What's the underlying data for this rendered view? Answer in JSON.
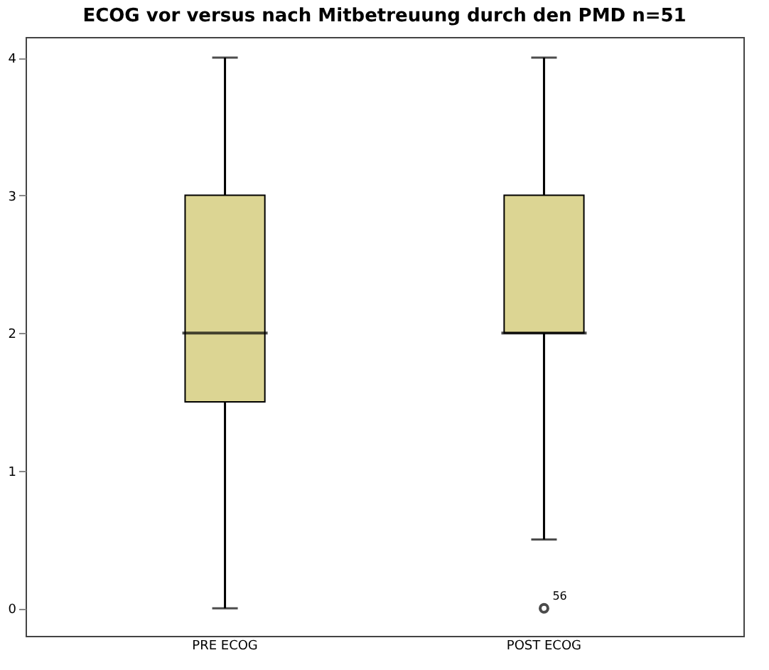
{
  "chart_data": {
    "type": "box",
    "title": "ECOG vor versus nach Mitbetreuung durch den PMD n=51",
    "categories": [
      "PRE ECOG",
      "POST ECOG"
    ],
    "boxes": [
      {
        "low": 0,
        "q1": 1.5,
        "median": 2,
        "q3": 3,
        "high": 4
      },
      {
        "low": 0.5,
        "q1": 2,
        "median": 2,
        "q3": 3,
        "high": 4,
        "outliers": [
          0
        ]
      }
    ],
    "color": "#dcd593",
    "ylim": [
      -0.2,
      4.15
    ],
    "yticks": [
      0,
      1,
      2,
      3,
      4
    ],
    "grid": false,
    "annotations": [
      "56"
    ]
  }
}
